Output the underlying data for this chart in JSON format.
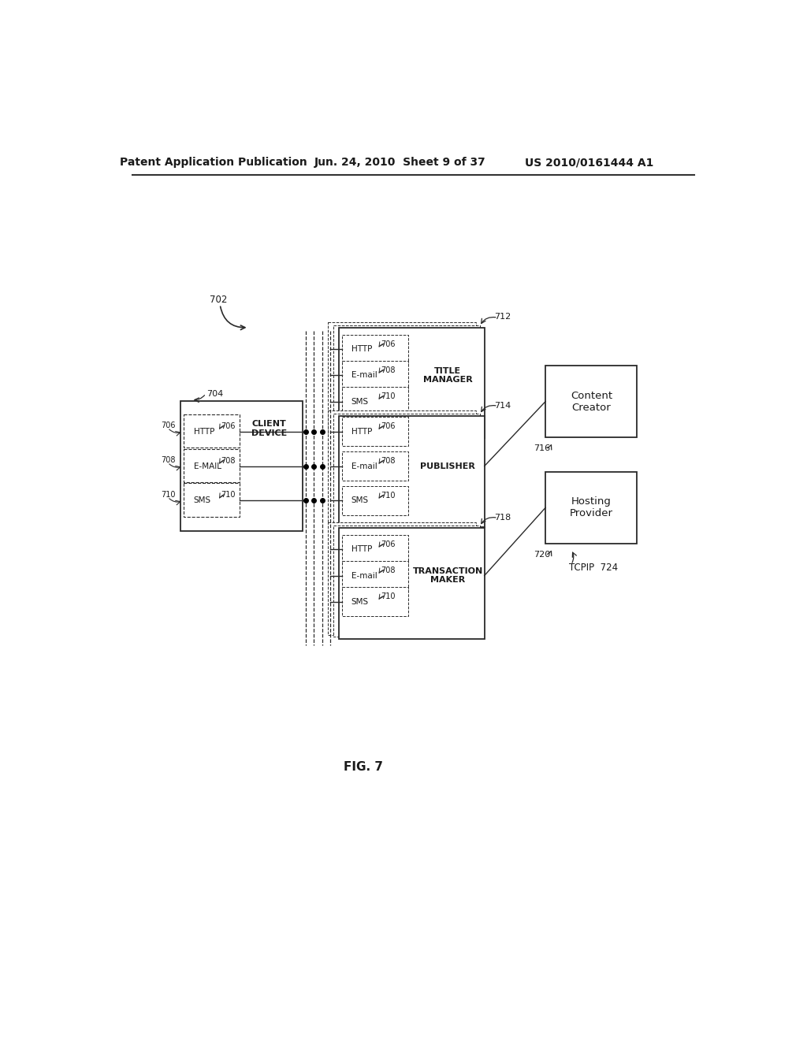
{
  "header_left": "Patent Application Publication",
  "header_mid": "Jun. 24, 2010  Sheet 9 of 37",
  "header_right": "US 2010/0161444 A1",
  "fig_label": "FIG. 7",
  "bg_color": "#ffffff",
  "lc": "#2a2a2a",
  "tc": "#1a1a1a",
  "label_702": "702",
  "label_704": "704",
  "label_712": "712",
  "label_714": "714",
  "label_716": "716",
  "label_718": "718",
  "label_720": "720",
  "label_724": "TCPIP  724",
  "content_creator": "Content\nCreator",
  "hosting_provider": "Hosting\nProvider",
  "client_device": "CLIENT\nDEVICE",
  "title_manager_l1": "TITLE",
  "title_manager_l2": "MANAGER",
  "publisher": "PUBLISHER",
  "transaction_maker_l1": "TRANSACTION",
  "transaction_maker_l2": "MAKER",
  "http": "HTTP",
  "email_cd": "E-MAIL",
  "email_srv": "E-mail",
  "sms": "SMS",
  "n706": "706",
  "n708": "708",
  "n710": "710"
}
